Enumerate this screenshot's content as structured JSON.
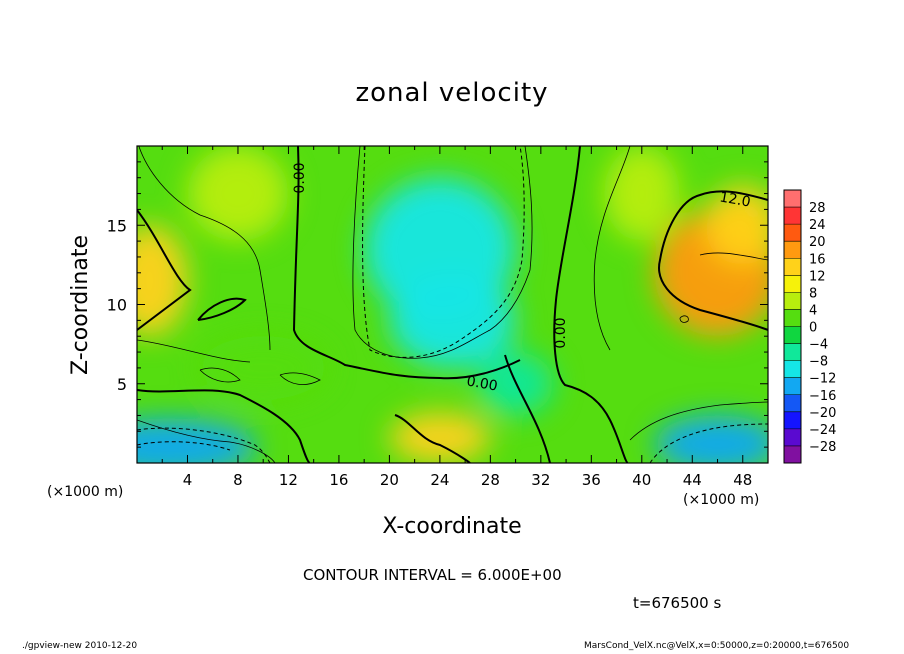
{
  "chart_data": {
    "type": "heatmap",
    "title": "zonal velocity",
    "xlabel": "X-coordinate",
    "ylabel": "Z-coordinate",
    "x_unit_label": "(×1000 m)",
    "x_unit_label_right": "(×1000 m)",
    "xlim": [
      0,
      50
    ],
    "ylim": [
      0,
      20
    ],
    "x_ticks": [
      4,
      8,
      12,
      16,
      20,
      24,
      28,
      32,
      36,
      40,
      44,
      48
    ],
    "x_tick_labels": [
      "4",
      "8",
      "12",
      "16",
      "20",
      "24",
      "28",
      "32",
      "36",
      "40",
      "44",
      "48"
    ],
    "y_ticks": [
      5,
      10,
      15
    ],
    "y_tick_labels": [
      "5",
      "10",
      "15"
    ],
    "colorbar": {
      "levels": [
        28,
        24,
        20,
        16,
        12,
        8,
        4,
        0,
        -4,
        -8,
        -12,
        -16,
        -20,
        -24,
        -28
      ],
      "labels": [
        "28",
        "24",
        "20",
        "16",
        "12",
        "8",
        "4",
        "0",
        "−4",
        "−8",
        "−12",
        "−16",
        "−20",
        "−24",
        "−28"
      ],
      "colors": [
        "#ff6f6f",
        "#ff3535",
        "#ff5a10",
        "#ff9a10",
        "#ffd21a",
        "#f6f20a",
        "#b8ee0e",
        "#55dd10",
        "#10d640",
        "#10e89a",
        "#15e6e6",
        "#12a8f2",
        "#1458f5",
        "#1414ff",
        "#5a0ad0",
        "#8010a0"
      ]
    },
    "contour_interval_text": "CONTOUR INTERVAL = 6.000E+00",
    "contour_labels": [
      "0.00",
      "0.00",
      "0.00",
      "12.0"
    ],
    "time_text": "t=676500 s",
    "footer_left": "./gpview-new   2010-12-20",
    "footer_right": "MarsCond_VelX.nc@VelX,x=0:50000,z=0:20000,t=676500",
    "field_blobs": [
      {
        "x": 24,
        "z": 13.5,
        "rx": 6,
        "rz": 4.5,
        "value": -11
      },
      {
        "x": 25,
        "z": 9,
        "rx": 5,
        "rz": 3,
        "value": -9
      },
      {
        "x": 46,
        "z": 12,
        "rx": 5,
        "rz": 4,
        "value": 17
      },
      {
        "x": 48,
        "z": 15,
        "rx": 3,
        "rz": 2.5,
        "value": 14
      },
      {
        "x": 1,
        "z": 11.5,
        "rx": 3,
        "rz": 3.5,
        "value": 13
      },
      {
        "x": 24,
        "z": 1.6,
        "rx": 4,
        "rz": 1.6,
        "value": 13
      },
      {
        "x": 2.5,
        "z": 1.0,
        "rx": 7,
        "rz": 1.8,
        "value": -12
      },
      {
        "x": 46,
        "z": 1.2,
        "rx": 5,
        "rz": 1.8,
        "value": -13
      },
      {
        "x": 8,
        "z": 17,
        "rx": 4,
        "rz": 3,
        "value": 7
      },
      {
        "x": 40,
        "z": 17,
        "rx": 3,
        "rz": 3,
        "value": 6
      },
      {
        "x": 10,
        "z": 6,
        "rx": 5,
        "rz": 2,
        "value": 3
      },
      {
        "x": 30,
        "z": 5,
        "rx": 3,
        "rz": 2,
        "value": -4
      }
    ]
  }
}
